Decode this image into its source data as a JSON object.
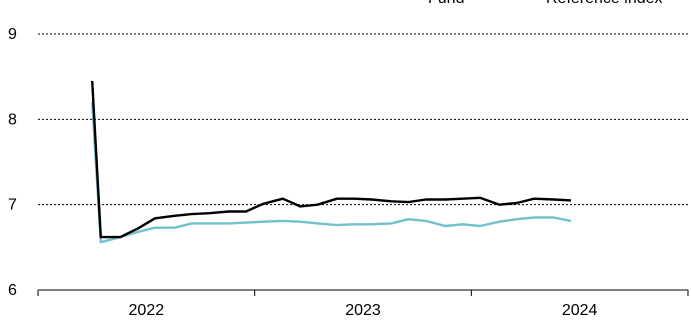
{
  "chart_data": {
    "type": "line",
    "title": "",
    "xlabel": "",
    "ylabel": "",
    "ylim": [
      6,
      9
    ],
    "y_ticks": [
      "6",
      "7",
      "8",
      "9"
    ],
    "x_categories": [
      "2022",
      "2023",
      "2024"
    ],
    "x_range": [
      2021.75,
      2024.75
    ],
    "grid": "horizontal dotted",
    "legend_placement": "top-right",
    "series": [
      {
        "name": "Fund",
        "color": "#000000",
        "points": [
          [
            2022.0,
            8.45
          ],
          [
            2022.04,
            6.62
          ],
          [
            2022.13,
            6.62
          ],
          [
            2022.21,
            6.72
          ],
          [
            2022.29,
            6.84
          ],
          [
            2022.38,
            6.87
          ],
          [
            2022.46,
            6.89
          ],
          [
            2022.54,
            6.9
          ],
          [
            2022.63,
            6.92
          ],
          [
            2022.71,
            6.92
          ],
          [
            2022.79,
            7.01
          ],
          [
            2022.88,
            7.07
          ],
          [
            2022.96,
            6.98
          ],
          [
            2023.04,
            7.0
          ],
          [
            2023.13,
            7.07
          ],
          [
            2023.21,
            7.07
          ],
          [
            2023.29,
            7.06
          ],
          [
            2023.38,
            7.04
          ],
          [
            2023.46,
            7.03
          ],
          [
            2023.54,
            7.06
          ],
          [
            2023.63,
            7.06
          ],
          [
            2023.71,
            7.07
          ],
          [
            2023.79,
            7.08
          ],
          [
            2023.88,
            7.0
          ],
          [
            2023.96,
            7.02
          ],
          [
            2024.04,
            7.07
          ],
          [
            2024.13,
            7.06
          ],
          [
            2024.21,
            7.05
          ]
        ]
      },
      {
        "name": "Reference index",
        "color": "#6fc2cc",
        "points": [
          [
            2022.0,
            8.2
          ],
          [
            2022.04,
            6.56
          ],
          [
            2022.13,
            6.62
          ],
          [
            2022.21,
            6.68
          ],
          [
            2022.29,
            6.73
          ],
          [
            2022.38,
            6.73
          ],
          [
            2022.46,
            6.78
          ],
          [
            2022.54,
            6.78
          ],
          [
            2022.63,
            6.78
          ],
          [
            2022.71,
            6.79
          ],
          [
            2022.79,
            6.8
          ],
          [
            2022.88,
            6.81
          ],
          [
            2022.96,
            6.8
          ],
          [
            2023.04,
            6.78
          ],
          [
            2023.13,
            6.76
          ],
          [
            2023.21,
            6.77
          ],
          [
            2023.29,
            6.77
          ],
          [
            2023.38,
            6.78
          ],
          [
            2023.46,
            6.83
          ],
          [
            2023.54,
            6.81
          ],
          [
            2023.63,
            6.75
          ],
          [
            2023.71,
            6.77
          ],
          [
            2023.79,
            6.75
          ],
          [
            2023.88,
            6.8
          ],
          [
            2023.96,
            6.83
          ],
          [
            2024.04,
            6.85
          ],
          [
            2024.13,
            6.85
          ],
          [
            2024.21,
            6.81
          ]
        ]
      }
    ]
  }
}
